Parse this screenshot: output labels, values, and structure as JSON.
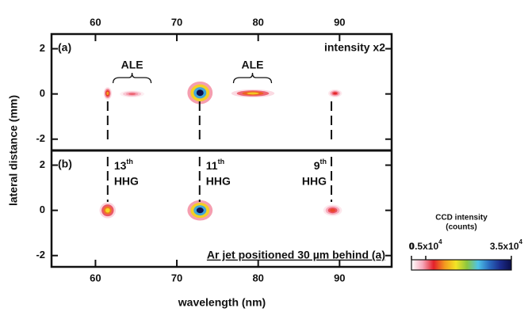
{
  "chart_data": {
    "type": "heatmap",
    "xlabel": "wavelength (nm)",
    "ylabel": "lateral distance (mm)",
    "xlim": [
      54.6,
      96.4
    ],
    "xticks": [
      60,
      70,
      80,
      90
    ],
    "colormap": [
      "#ffffff",
      "#f6a9bb",
      "#e4202a",
      "#f39a1f",
      "#f3e425",
      "#8cc63f",
      "#4ec3e8",
      "#2b6cc0",
      "#1c2c8c",
      "#0b0f4a"
    ],
    "panels": [
      {
        "label": "(a)",
        "note": "intensity x2",
        "ylim": [
          -2.5,
          2.65
        ],
        "yticks": [
          -2,
          0,
          2
        ],
        "annotations": [
          {
            "text": "ALE",
            "x": 64.5
          },
          {
            "text": "ALE",
            "x": 79.3
          }
        ],
        "spots": [
          {
            "x": [
              61.0,
              62.0
            ],
            "y": [
              -0.25,
              0.3
            ],
            "value": 12000
          },
          {
            "x": [
              63.0,
              66.0
            ],
            "y": [
              -0.15,
              0.15
            ],
            "value": 6000
          },
          {
            "x": [
              71.3,
              74.4
            ],
            "y": [
              -0.45,
              0.55
            ],
            "value": 35000
          },
          {
            "x": [
              76.7,
              82.0
            ],
            "y": [
              -0.15,
              0.2
            ],
            "value": 14000
          },
          {
            "x": [
              88.6,
              90.3
            ],
            "y": [
              -0.15,
              0.2
            ],
            "value": 8000
          }
        ]
      },
      {
        "label": "(b)",
        "note": "Ar jet positioned 30 µm behind (a)",
        "ylim": [
          -2.5,
          2.65
        ],
        "yticks": [
          -2,
          0,
          2
        ],
        "harmonics": [
          {
            "x": 61.5,
            "order": "13",
            "suffix": "th",
            "text": "HHG"
          },
          {
            "x": 72.8,
            "order": "11",
            "suffix": "th",
            "text": "HHG"
          },
          {
            "x": 89.0,
            "order": "9",
            "suffix": "th",
            "text": "HHG"
          }
        ],
        "spots": [
          {
            "x": [
              60.5,
              62.5
            ],
            "y": [
              -0.35,
              0.35
            ],
            "value": 15000
          },
          {
            "x": [
              71.3,
              74.4
            ],
            "y": [
              -0.45,
              0.45
            ],
            "value": 35000
          },
          {
            "x": [
              88.0,
              90.3
            ],
            "y": [
              -0.25,
              0.25
            ],
            "value": 9000
          }
        ]
      }
    ],
    "colorbar": {
      "title": "CCD intensity",
      "unit": "(counts)",
      "lim": [
        0,
        35000
      ],
      "ticks": [
        0,
        {
          "value": 5000,
          "label": "0.5x10",
          "exponent": "4"
        },
        {
          "value": 35000,
          "label": "3.5x10",
          "exponent": "4"
        }
      ]
    }
  }
}
